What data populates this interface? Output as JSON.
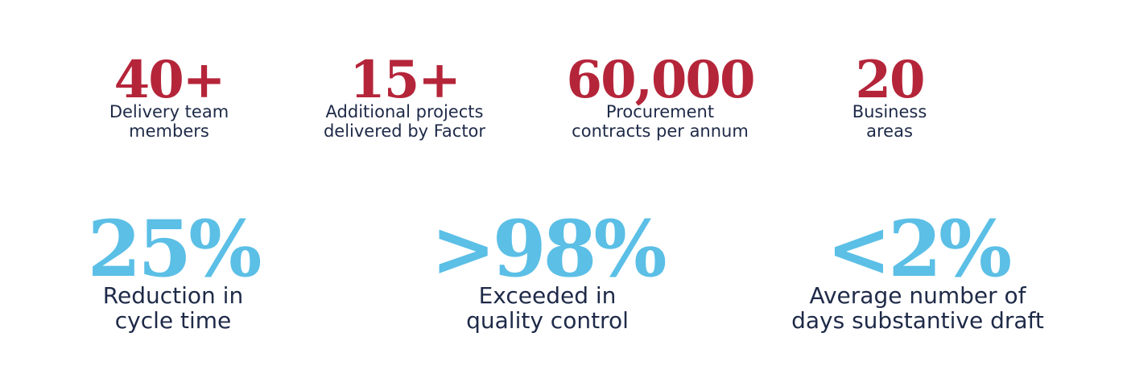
{
  "top_stats": [
    {
      "value": "40+",
      "label_line1": "Delivery team",
      "label_line2": "members"
    },
    {
      "value": "15+",
      "label_line1": "Additional projects",
      "label_line2": "delivered by Factor"
    },
    {
      "value": "60,000",
      "label_line1": "Procurement",
      "label_line2": "contracts per annum"
    },
    {
      "value": "20",
      "label_line1": "Business",
      "label_line2": "areas"
    }
  ],
  "bottom_stats": [
    {
      "value": "25%",
      "label_line1": "Reduction in",
      "label_line2": "cycle time"
    },
    {
      "value": ">98%",
      "label_line1": "Exceeded in",
      "label_line2": "quality control"
    },
    {
      "value": "<2%",
      "label_line1": "Average number of",
      "label_line2": "days substantive draft"
    }
  ],
  "colors": {
    "top_value": "#b5253a",
    "bottom_value": "#5bbfe6",
    "label_text": "#1e2a48",
    "background": "#ffffff"
  }
}
